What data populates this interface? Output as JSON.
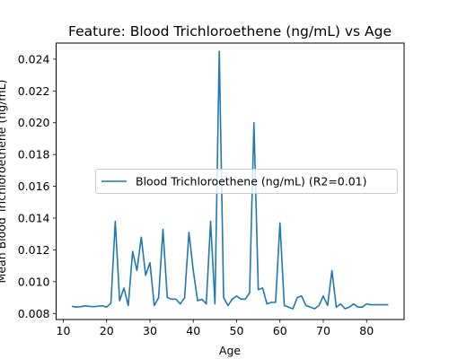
{
  "chart_data": {
    "type": "line",
    "title": "Feature: Blood Trichloroethene (ng/mL) vs Age",
    "xlabel": "Age",
    "ylabel": "Mean Blood Trichloroethene (ng/mL)",
    "xlim": [
      8.35,
      88.65
    ],
    "ylim": [
      0.00762,
      0.02501
    ],
    "xticks": [
      10,
      20,
      30,
      40,
      50,
      60,
      70,
      80
    ],
    "xtick_labels": [
      "10",
      "20",
      "30",
      "40",
      "50",
      "60",
      "70",
      "80"
    ],
    "yticks": [
      0.008,
      0.01,
      0.012,
      0.014,
      0.016,
      0.018,
      0.02,
      0.022,
      0.024
    ],
    "ytick_labels": [
      "0.008",
      "0.010",
      "0.012",
      "0.014",
      "0.016",
      "0.018",
      "0.020",
      "0.022",
      "0.024"
    ],
    "grid": false,
    "legend_position": "center-right",
    "series": [
      {
        "name": "Blood Trichloroethene (ng/mL) (R2=0.01)",
        "color": "#1f77b4",
        "x": [
          12,
          13,
          14,
          15,
          16,
          17,
          18,
          19,
          20,
          21,
          22,
          23,
          24,
          25,
          26,
          27,
          28,
          29,
          30,
          31,
          32,
          33,
          34,
          35,
          36,
          37,
          38,
          39,
          40,
          41,
          42,
          43,
          44,
          45,
          46,
          47,
          48,
          49,
          50,
          51,
          52,
          53,
          54,
          55,
          56,
          57,
          58,
          59,
          60,
          61,
          62,
          63,
          64,
          65,
          66,
          67,
          68,
          69,
          70,
          71,
          72,
          73,
          74,
          75,
          76,
          77,
          78,
          79,
          80,
          81,
          82,
          83,
          84,
          85
        ],
        "y": [
          0.00845,
          0.0084,
          0.00842,
          0.00848,
          0.00845,
          0.00843,
          0.00846,
          0.00848,
          0.0084,
          0.00865,
          0.0138,
          0.0088,
          0.0096,
          0.0085,
          0.0119,
          0.0107,
          0.0128,
          0.0104,
          0.0112,
          0.0085,
          0.009,
          0.0133,
          0.009,
          0.0089,
          0.0089,
          0.0086,
          0.009,
          0.0131,
          0.0107,
          0.0088,
          0.0089,
          0.0086,
          0.0138,
          0.0086,
          0.0245,
          0.009,
          0.0085,
          0.0089,
          0.0091,
          0.0089,
          0.0089,
          0.0093,
          0.02,
          0.0095,
          0.0096,
          0.0086,
          0.0087,
          0.0087,
          0.0137,
          0.0085,
          0.0084,
          0.0083,
          0.009,
          0.0091,
          0.0085,
          0.0084,
          0.0083,
          0.0085,
          0.0091,
          0.0085,
          0.0107,
          0.0084,
          0.0086,
          0.0083,
          0.0084,
          0.0086,
          0.0084,
          0.0084,
          0.0086,
          0.00855,
          0.00855,
          0.00855,
          0.00855,
          0.00855
        ]
      }
    ]
  }
}
